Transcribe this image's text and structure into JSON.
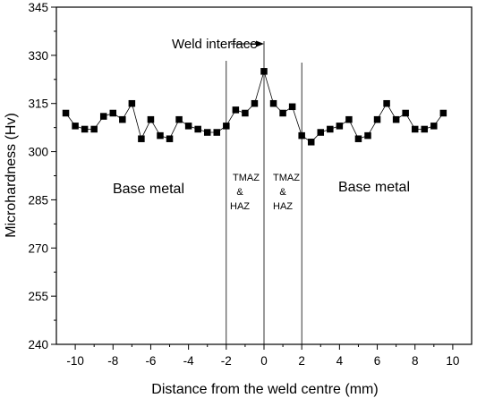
{
  "chart_data": {
    "type": "scatter",
    "xlabel": "Distance from the weld centre (mm)",
    "ylabel": "Microhardness (Hv)",
    "xlim": [
      -11,
      11
    ],
    "ylim": [
      240,
      345
    ],
    "x_ticks": [
      -10,
      -8,
      -6,
      -4,
      -2,
      0,
      2,
      4,
      6,
      8,
      10
    ],
    "y_ticks": [
      240,
      255,
      270,
      285,
      300,
      315,
      330,
      345
    ],
    "grid": false,
    "series": [
      {
        "marker": "square",
        "line": true,
        "color": "#000000",
        "x": [
          -10.5,
          -10,
          -9.5,
          -9,
          -8.5,
          -8,
          -7.5,
          -7,
          -6.5,
          -6,
          -5.5,
          -5,
          -4.5,
          -4,
          -3.5,
          -3,
          -2.5,
          -2,
          -1.5,
          -1,
          -0.5,
          0,
          0.5,
          1,
          1.5,
          2,
          2.5,
          3,
          3.5,
          4,
          4.5,
          5,
          5.5,
          6,
          6.5,
          7,
          7.5,
          8,
          8.5,
          9,
          9.5
        ],
        "y": [
          312,
          308,
          307,
          307,
          311,
          312,
          310,
          315,
          304,
          310,
          305,
          304,
          310,
          308,
          307,
          306,
          306,
          308,
          313,
          312,
          315,
          325,
          315,
          312,
          314,
          305,
          303,
          306,
          307,
          308,
          310,
          304,
          305,
          310,
          315,
          310,
          312,
          307,
          307,
          308,
          312
        ]
      }
    ],
    "boundary_lines_x": [
      -2,
      0,
      2
    ],
    "annotations": {
      "weld_interface": "Weld interface",
      "base_metal_left": "Base metal",
      "base_metal_right": "Base metal",
      "zone_left": [
        "TMAZ",
        "&",
        "HAZ"
      ],
      "zone_right": [
        "TMAZ",
        "&",
        "HAZ"
      ]
    }
  }
}
